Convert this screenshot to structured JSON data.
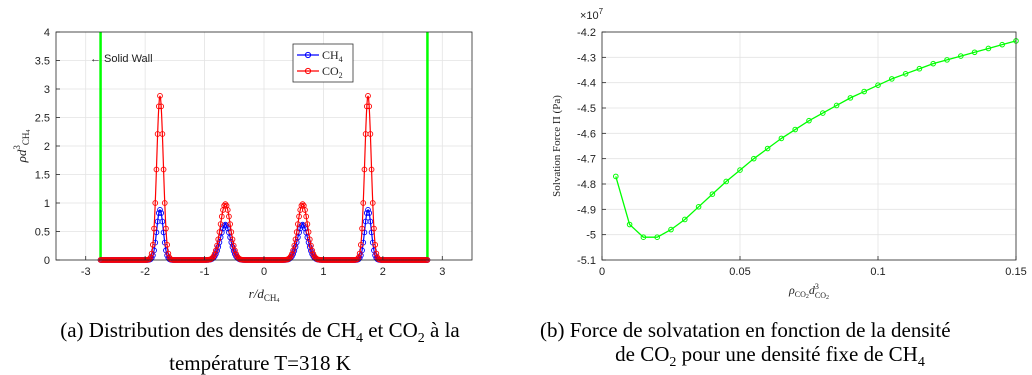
{
  "chart_data": [
    {
      "type": "line",
      "xlabel_parts": [
        "r/d",
        "CH",
        "4"
      ],
      "ylabel_parts": [
        "ρd",
        "3",
        "CH",
        "4"
      ],
      "xlim": [
        -3.5,
        3.5
      ],
      "ylim": [
        0,
        4
      ],
      "xticks": [
        -3,
        -2,
        -1,
        0,
        1,
        2,
        3
      ],
      "yticks": [
        0,
        0.5,
        1,
        1.5,
        2,
        2.5,
        3,
        3.5,
        4
      ],
      "grid": true,
      "legend_position": "top-center",
      "annotation": "← Solid Wall",
      "wall_positions": [
        -2.75,
        2.75
      ],
      "series": [
        {
          "name_parts": [
            "CH",
            "4"
          ],
          "color": "#0000ff",
          "peaks": [
            {
              "x": -1.75,
              "height": 0.88,
              "width": 0.055
            },
            {
              "x": -0.65,
              "height": 0.62,
              "width": 0.085
            },
            {
              "x": 0.65,
              "height": 0.62,
              "width": 0.085
            },
            {
              "x": 1.75,
              "height": 0.88,
              "width": 0.055
            }
          ]
        },
        {
          "name_parts": [
            "CO",
            "2"
          ],
          "color": "#ff0000",
          "peaks": [
            {
              "x": -1.75,
              "height": 2.88,
              "width": 0.055
            },
            {
              "x": -0.65,
              "height": 0.98,
              "width": 0.085
            },
            {
              "x": 0.65,
              "height": 0.98,
              "width": 0.085
            },
            {
              "x": 1.75,
              "height": 2.88,
              "width": 0.055
            }
          ]
        }
      ]
    },
    {
      "type": "line",
      "ylabel": "Solvation Force Π (Pa)",
      "xlabel_parts": [
        "ρ",
        "CO",
        "2",
        "d",
        "3",
        "CO",
        "2"
      ],
      "exponent_label": "×10",
      "exponent_power": "7",
      "xlim": [
        0,
        0.15
      ],
      "ylim": [
        -5.1,
        -4.2
      ],
      "xticks": [
        0,
        0.05,
        0.1,
        0.15
      ],
      "xtick_labels": [
        "0",
        "0.05",
        "0.1",
        "0.15"
      ],
      "yticks": [
        -5.1,
        -5,
        -4.9,
        -4.8,
        -4.7,
        -4.6,
        -4.5,
        -4.4,
        -4.3,
        -4.2
      ],
      "ytick_labels": [
        "-5.1",
        "-5",
        "-4.9",
        "-4.8",
        "-4.7",
        "-4.6",
        "-4.5",
        "-4.4",
        "-4.3",
        "-4.2"
      ],
      "grid": true,
      "color": "#00ff00",
      "x": [
        0.005,
        0.01,
        0.015,
        0.02,
        0.025,
        0.03,
        0.035,
        0.04,
        0.045,
        0.05,
        0.055,
        0.06,
        0.065,
        0.07,
        0.075,
        0.08,
        0.085,
        0.09,
        0.095,
        0.1,
        0.105,
        0.11,
        0.115,
        0.12,
        0.125,
        0.13,
        0.135,
        0.14,
        0.145,
        0.15
      ],
      "y": [
        -4.77,
        -4.96,
        -5.01,
        -5.01,
        -4.98,
        -4.94,
        -4.89,
        -4.84,
        -4.79,
        -4.745,
        -4.7,
        -4.66,
        -4.62,
        -4.585,
        -4.55,
        -4.52,
        -4.49,
        -4.46,
        -4.435,
        -4.41,
        -4.385,
        -4.365,
        -4.345,
        -4.325,
        -4.31,
        -4.295,
        -4.28,
        -4.265,
        -4.25,
        -4.235
      ]
    }
  ],
  "captions": {
    "a_line1_parts": [
      "(a) Distribution des densités de CH",
      "4",
      " et CO",
      "2",
      " à la"
    ],
    "a_line2": "température T=318 K",
    "b_line1": "(b) Force de solvatation en fonction de la densité",
    "b_line2_parts": [
      "de CO",
      "2",
      " pour une densité fixe de CH",
      "4"
    ]
  }
}
